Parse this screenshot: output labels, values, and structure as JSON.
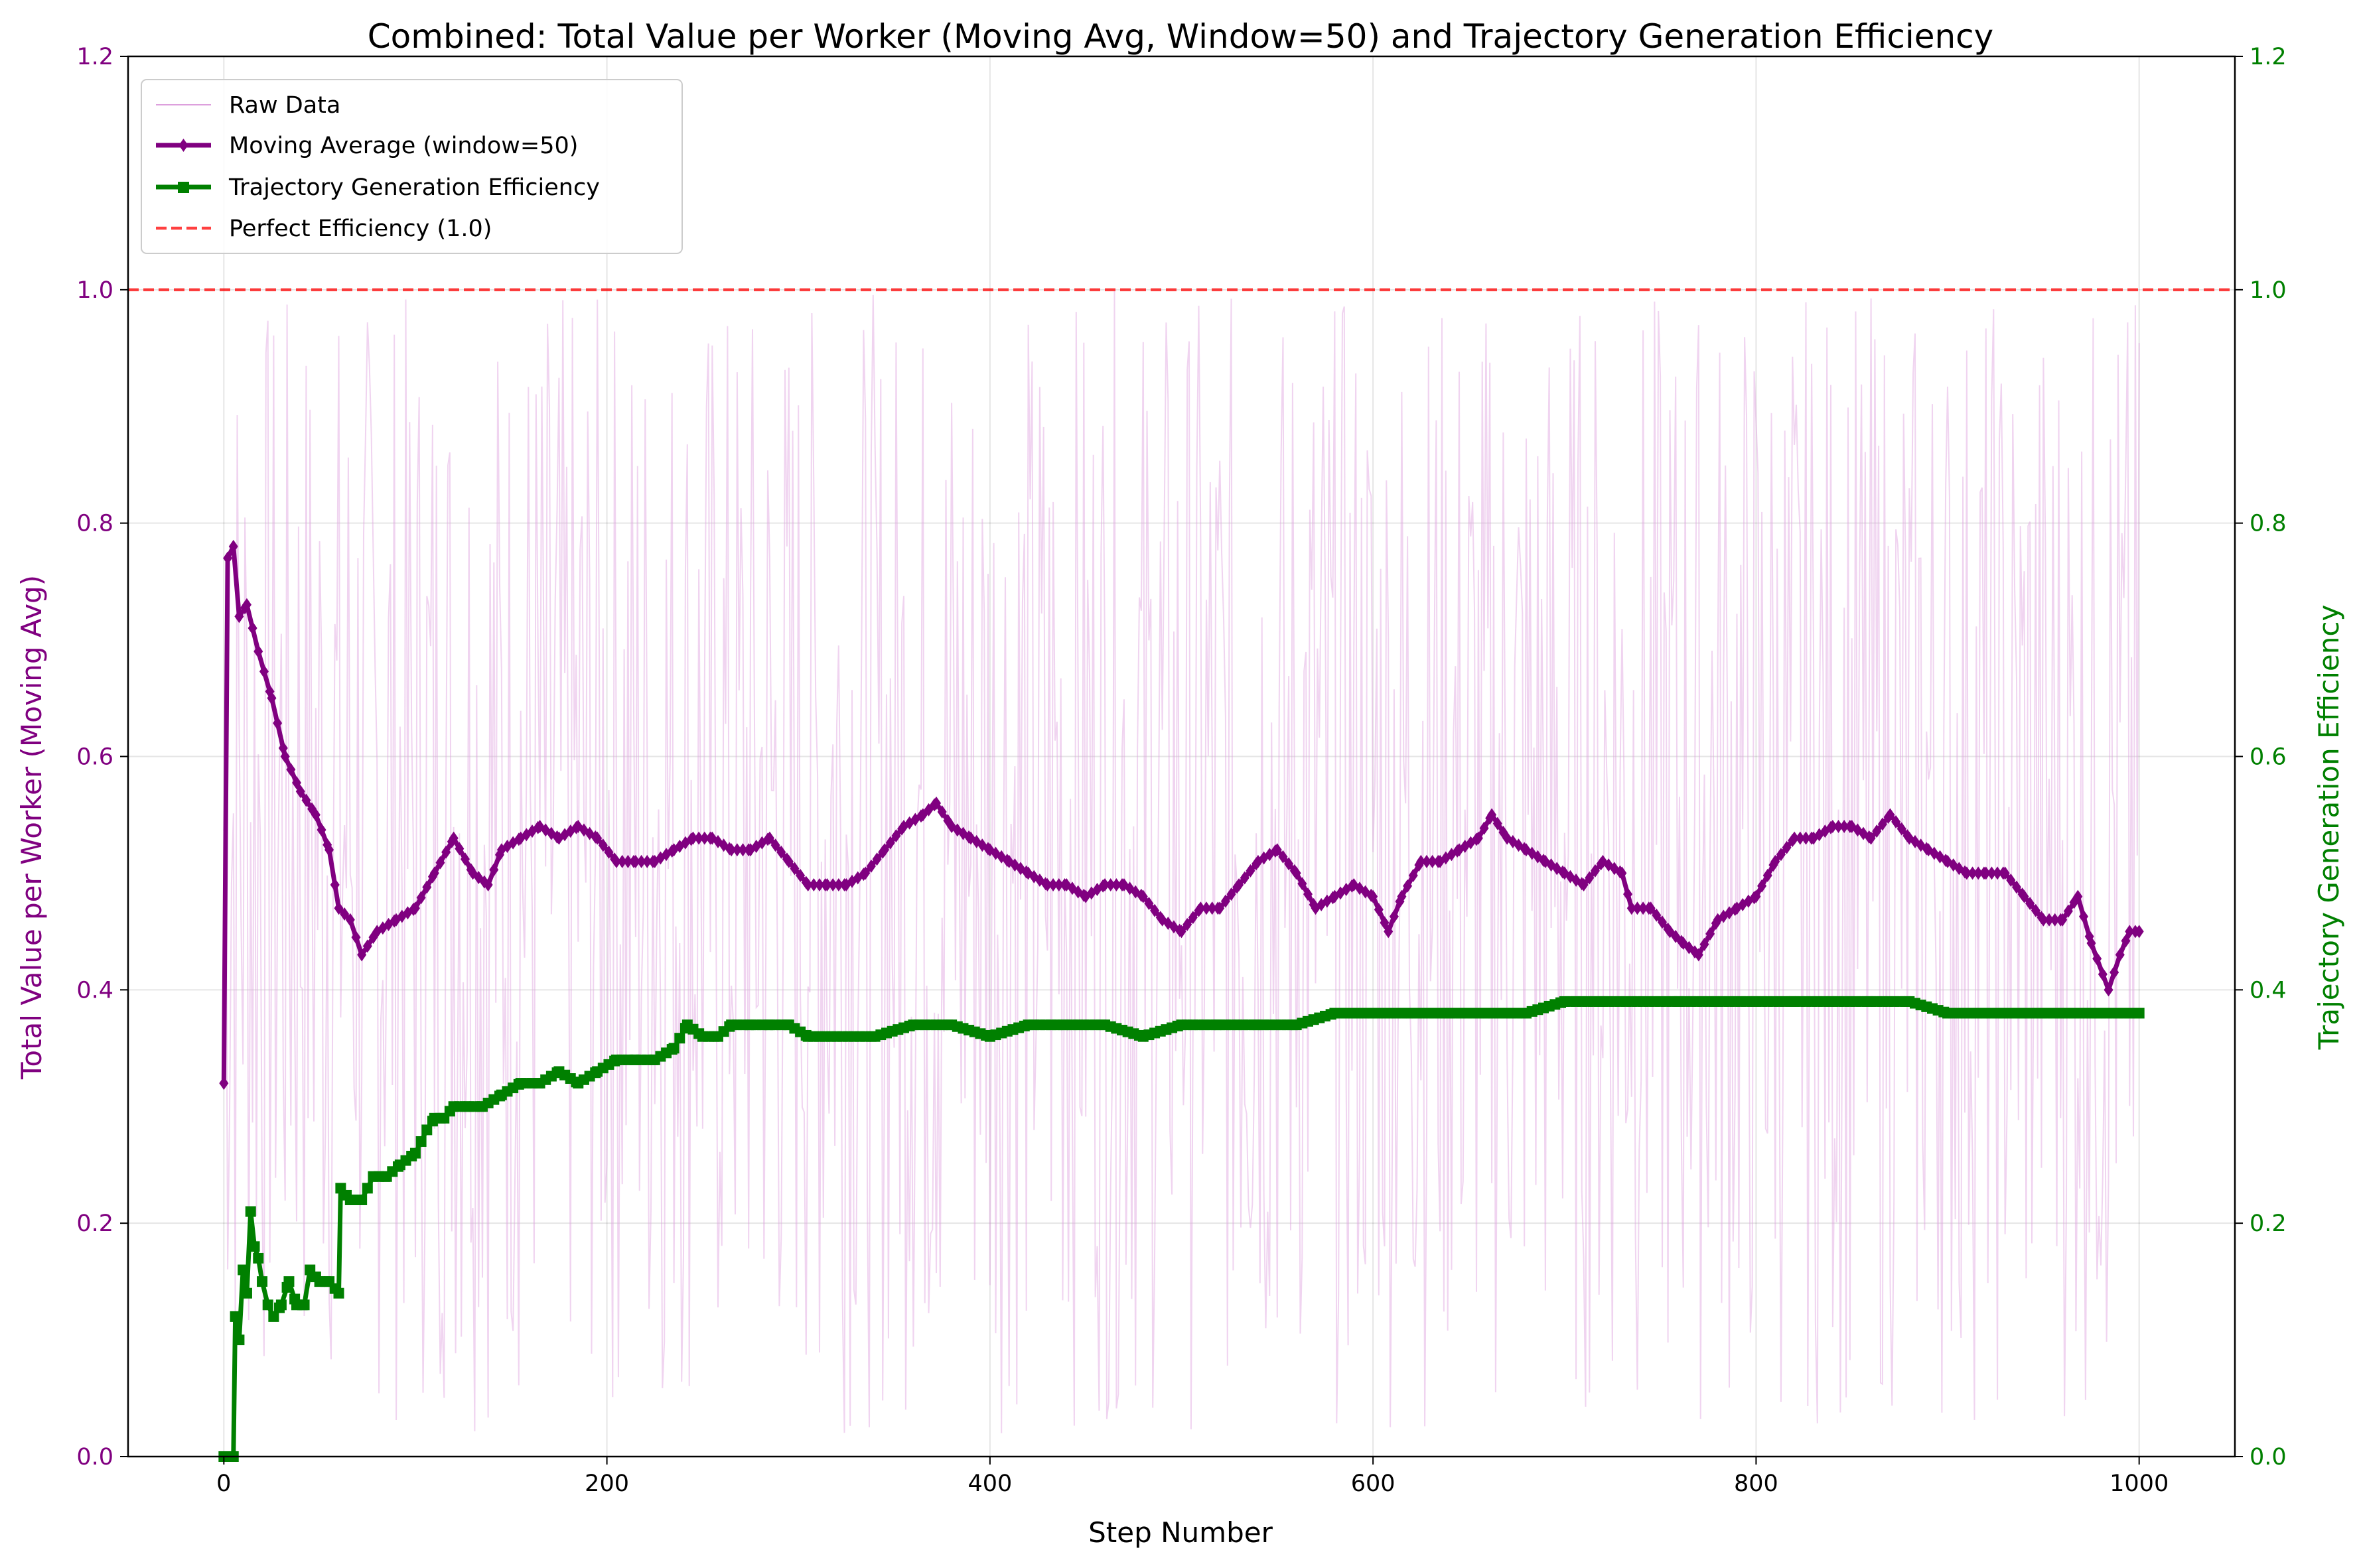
{
  "chart_data": {
    "type": "line",
    "title": "Combined: Total Value per Worker (Moving Avg, Window=50) and Trajectory Generation Efficiency",
    "xlabel": "Step Number",
    "ylabel_left": "Total Value per Worker (Moving Avg)",
    "ylabel_right": "Trajectory Generation Efficiency",
    "xlim": [
      -50,
      1050
    ],
    "ylim_left": [
      0,
      1.2
    ],
    "ylim_right": [
      0,
      1.2
    ],
    "x_ticks": [
      0,
      200,
      400,
      600,
      800,
      1000
    ],
    "x_tick_labels": [
      "0",
      "200",
      "400",
      "600",
      "800",
      "1000"
    ],
    "y_ticks": [
      0.0,
      0.2,
      0.4,
      0.6,
      0.8,
      1.0,
      1.2
    ],
    "y_tick_labels": [
      "0.0",
      "0.2",
      "0.4",
      "0.6",
      "0.8",
      "1.0",
      "1.2"
    ],
    "grid": true,
    "legend_position": "top-left",
    "colors": {
      "left_axis": "#800080",
      "right_axis": "#008000",
      "raw": "#dda0dd",
      "moving_avg": "#800080",
      "efficiency": "#008000",
      "reference": "#ff0000"
    },
    "series": [
      {
        "name": "Raw Data",
        "style": "thin-line",
        "x_range": [
          0,
          1000
        ],
        "y_band": [
          0.02,
          1.0
        ]
      },
      {
        "name": "Moving Average (window=50)",
        "style": "line-diamond-markers",
        "points": [
          [
            0,
            0.32
          ],
          [
            2,
            0.77
          ],
          [
            5,
            0.78
          ],
          [
            8,
            0.72
          ],
          [
            12,
            0.73
          ],
          [
            18,
            0.69
          ],
          [
            25,
            0.65
          ],
          [
            32,
            0.6
          ],
          [
            40,
            0.57
          ],
          [
            48,
            0.55
          ],
          [
            55,
            0.52
          ],
          [
            60,
            0.47
          ],
          [
            66,
            0.46
          ],
          [
            72,
            0.43
          ],
          [
            80,
            0.45
          ],
          [
            90,
            0.46
          ],
          [
            100,
            0.47
          ],
          [
            110,
            0.5
          ],
          [
            120,
            0.53
          ],
          [
            130,
            0.5
          ],
          [
            138,
            0.49
          ],
          [
            145,
            0.52
          ],
          [
            155,
            0.53
          ],
          [
            165,
            0.54
          ],
          [
            175,
            0.53
          ],
          [
            185,
            0.54
          ],
          [
            195,
            0.53
          ],
          [
            205,
            0.51
          ],
          [
            215,
            0.51
          ],
          [
            225,
            0.51
          ],
          [
            235,
            0.52
          ],
          [
            245,
            0.53
          ],
          [
            255,
            0.53
          ],
          [
            265,
            0.52
          ],
          [
            275,
            0.52
          ],
          [
            285,
            0.53
          ],
          [
            295,
            0.51
          ],
          [
            305,
            0.49
          ],
          [
            315,
            0.49
          ],
          [
            325,
            0.49
          ],
          [
            335,
            0.5
          ],
          [
            345,
            0.52
          ],
          [
            355,
            0.54
          ],
          [
            365,
            0.55
          ],
          [
            372,
            0.56
          ],
          [
            380,
            0.54
          ],
          [
            390,
            0.53
          ],
          [
            400,
            0.52
          ],
          [
            410,
            0.51
          ],
          [
            420,
            0.5
          ],
          [
            430,
            0.49
          ],
          [
            440,
            0.49
          ],
          [
            450,
            0.48
          ],
          [
            460,
            0.49
          ],
          [
            470,
            0.49
          ],
          [
            480,
            0.48
          ],
          [
            490,
            0.46
          ],
          [
            500,
            0.45
          ],
          [
            510,
            0.47
          ],
          [
            520,
            0.47
          ],
          [
            530,
            0.49
          ],
          [
            540,
            0.51
          ],
          [
            550,
            0.52
          ],
          [
            560,
            0.5
          ],
          [
            570,
            0.47
          ],
          [
            580,
            0.48
          ],
          [
            590,
            0.49
          ],
          [
            600,
            0.48
          ],
          [
            608,
            0.45
          ],
          [
            615,
            0.48
          ],
          [
            625,
            0.51
          ],
          [
            635,
            0.51
          ],
          [
            645,
            0.52
          ],
          [
            655,
            0.53
          ],
          [
            662,
            0.55
          ],
          [
            670,
            0.53
          ],
          [
            680,
            0.52
          ],
          [
            690,
            0.51
          ],
          [
            700,
            0.5
          ],
          [
            710,
            0.49
          ],
          [
            720,
            0.51
          ],
          [
            730,
            0.5
          ],
          [
            735,
            0.47
          ],
          [
            745,
            0.47
          ],
          [
            755,
            0.45
          ],
          [
            762,
            0.44
          ],
          [
            770,
            0.43
          ],
          [
            780,
            0.46
          ],
          [
            790,
            0.47
          ],
          [
            800,
            0.48
          ],
          [
            810,
            0.51
          ],
          [
            820,
            0.53
          ],
          [
            830,
            0.53
          ],
          [
            840,
            0.54
          ],
          [
            850,
            0.54
          ],
          [
            860,
            0.53
          ],
          [
            870,
            0.55
          ],
          [
            880,
            0.53
          ],
          [
            890,
            0.52
          ],
          [
            900,
            0.51
          ],
          [
            910,
            0.5
          ],
          [
            920,
            0.5
          ],
          [
            930,
            0.5
          ],
          [
            940,
            0.48
          ],
          [
            950,
            0.46
          ],
          [
            960,
            0.46
          ],
          [
            968,
            0.48
          ],
          [
            975,
            0.44
          ],
          [
            984,
            0.4
          ],
          [
            990,
            0.43
          ],
          [
            995,
            0.45
          ],
          [
            1000,
            0.45
          ]
        ]
      },
      {
        "name": "Trajectory Generation Efficiency",
        "style": "line-square-markers",
        "points": [
          [
            0,
            0.0
          ],
          [
            5,
            0.0
          ],
          [
            6,
            0.12
          ],
          [
            8,
            0.1
          ],
          [
            10,
            0.16
          ],
          [
            12,
            0.14
          ],
          [
            14,
            0.21
          ],
          [
            16,
            0.18
          ],
          [
            18,
            0.17
          ],
          [
            20,
            0.15
          ],
          [
            23,
            0.13
          ],
          [
            26,
            0.12
          ],
          [
            30,
            0.13
          ],
          [
            34,
            0.15
          ],
          [
            38,
            0.13
          ],
          [
            42,
            0.13
          ],
          [
            45,
            0.16
          ],
          [
            50,
            0.15
          ],
          [
            55,
            0.15
          ],
          [
            60,
            0.14
          ],
          [
            61,
            0.23
          ],
          [
            66,
            0.22
          ],
          [
            72,
            0.22
          ],
          [
            78,
            0.24
          ],
          [
            85,
            0.24
          ],
          [
            92,
            0.25
          ],
          [
            100,
            0.26
          ],
          [
            106,
            0.28
          ],
          [
            110,
            0.29
          ],
          [
            115,
            0.29
          ],
          [
            120,
            0.3
          ],
          [
            128,
            0.3
          ],
          [
            135,
            0.3
          ],
          [
            145,
            0.31
          ],
          [
            155,
            0.32
          ],
          [
            165,
            0.32
          ],
          [
            175,
            0.33
          ],
          [
            185,
            0.32
          ],
          [
            195,
            0.33
          ],
          [
            205,
            0.34
          ],
          [
            215,
            0.34
          ],
          [
            225,
            0.34
          ],
          [
            235,
            0.35
          ],
          [
            242,
            0.37
          ],
          [
            250,
            0.36
          ],
          [
            258,
            0.36
          ],
          [
            265,
            0.37
          ],
          [
            275,
            0.37
          ],
          [
            285,
            0.37
          ],
          [
            295,
            0.37
          ],
          [
            305,
            0.36
          ],
          [
            320,
            0.36
          ],
          [
            340,
            0.36
          ],
          [
            360,
            0.37
          ],
          [
            380,
            0.37
          ],
          [
            400,
            0.36
          ],
          [
            420,
            0.37
          ],
          [
            440,
            0.37
          ],
          [
            460,
            0.37
          ],
          [
            480,
            0.36
          ],
          [
            500,
            0.37
          ],
          [
            520,
            0.37
          ],
          [
            540,
            0.37
          ],
          [
            560,
            0.37
          ],
          [
            580,
            0.38
          ],
          [
            600,
            0.38
          ],
          [
            620,
            0.38
          ],
          [
            640,
            0.38
          ],
          [
            660,
            0.38
          ],
          [
            680,
            0.38
          ],
          [
            700,
            0.39
          ],
          [
            720,
            0.39
          ],
          [
            735,
            0.39
          ],
          [
            760,
            0.39
          ],
          [
            780,
            0.39
          ],
          [
            800,
            0.39
          ],
          [
            820,
            0.39
          ],
          [
            840,
            0.39
          ],
          [
            860,
            0.39
          ],
          [
            880,
            0.39
          ],
          [
            900,
            0.38
          ],
          [
            920,
            0.38
          ],
          [
            940,
            0.38
          ],
          [
            960,
            0.38
          ],
          [
            980,
            0.38
          ],
          [
            1000,
            0.38
          ]
        ]
      },
      {
        "name": "Perfect Efficiency (1.0)",
        "style": "dashed-horizontal",
        "y": 1.0
      }
    ]
  }
}
